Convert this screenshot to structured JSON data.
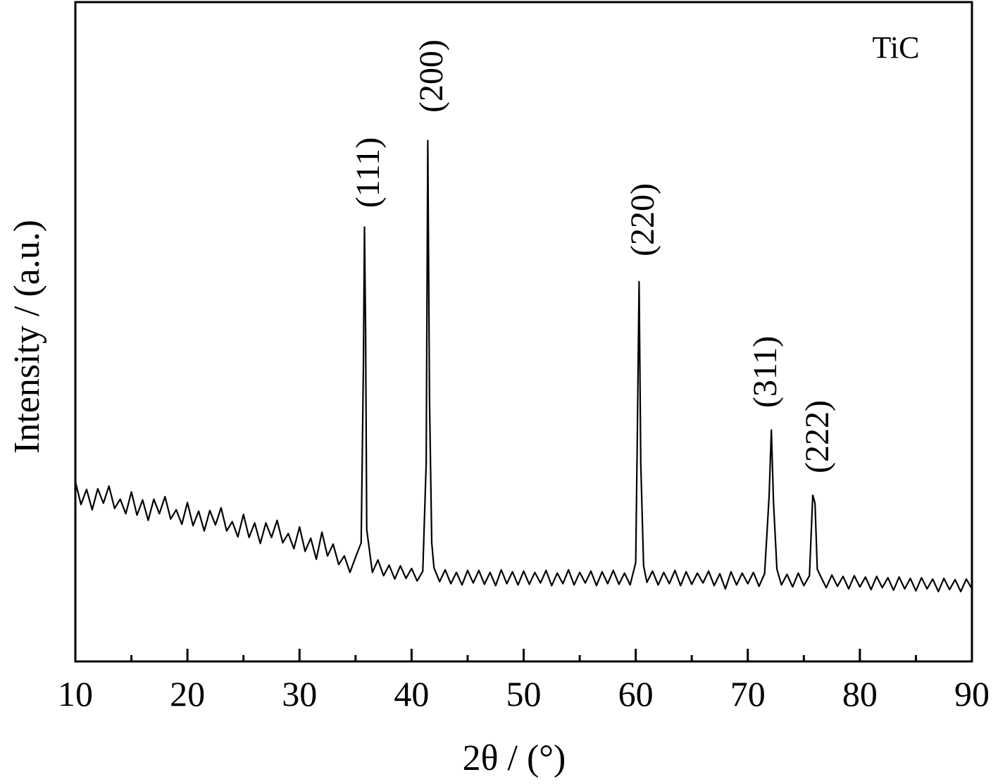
{
  "chart_data": {
    "type": "line",
    "xlabel": "2θ / (°)",
    "ylabel": "Intensity / (a.u.)",
    "annotations": [
      "TiC",
      "(111)",
      "(200)",
      "(220)",
      "(311)",
      "(222)"
    ],
    "color": "#000000",
    "xlim": [
      10,
      90
    ],
    "xticks": [
      10,
      20,
      30,
      40,
      50,
      60,
      70,
      80,
      90
    ],
    "xminorticks": [
      15,
      25,
      35,
      45,
      55,
      65,
      75,
      85
    ],
    "ylim": [
      0,
      100
    ],
    "x": [
      10,
      10.5,
      11,
      11.5,
      12,
      12.5,
      13,
      13.5,
      14,
      14.5,
      15,
      15.5,
      16,
      16.5,
      17,
      17.5,
      18,
      18.5,
      19,
      19.5,
      20,
      20.5,
      21,
      21.5,
      22,
      22.5,
      23,
      23.5,
      24,
      24.5,
      25,
      25.5,
      26,
      26.5,
      27,
      27.5,
      28,
      28.5,
      29,
      29.5,
      30,
      30.5,
      31,
      31.5,
      32,
      32.5,
      33,
      33.5,
      34,
      34.5,
      35,
      35.5,
      35.7,
      35.8,
      35.9,
      36,
      36.5,
      37,
      37.5,
      38,
      38.5,
      39,
      39.5,
      40,
      40.5,
      41,
      41.3,
      41.45,
      41.6,
      41.8,
      42,
      42.5,
      43,
      43.5,
      44,
      44.5,
      45,
      45.5,
      46,
      46.5,
      47,
      47.5,
      48,
      48.5,
      49,
      49.5,
      50,
      50.5,
      51,
      51.5,
      52,
      52.5,
      53,
      53.5,
      54,
      54.5,
      55,
      55.5,
      56,
      56.5,
      57,
      57.5,
      58,
      58.5,
      59,
      59.5,
      60,
      60.15,
      60.3,
      60.45,
      60.7,
      61,
      61.5,
      62,
      62.5,
      63,
      63.5,
      64,
      64.5,
      65,
      65.5,
      66,
      66.5,
      67,
      67.5,
      68,
      68.5,
      69,
      69.5,
      70,
      70.5,
      71,
      71.5,
      71.9,
      72.1,
      72.3,
      72.6,
      73,
      73.5,
      74,
      74.5,
      75,
      75.5,
      75.8,
      76,
      76.2,
      76.5,
      77,
      77.5,
      78,
      78.5,
      79,
      79.5,
      80,
      80.5,
      81,
      81.5,
      82,
      82.5,
      83,
      83.5,
      84,
      84.5,
      85,
      85.5,
      86,
      86.5,
      87,
      87.5,
      88,
      88.5,
      89,
      89.5,
      90
    ],
    "values": [
      27.3,
      23.8,
      26.1,
      23.0,
      26.2,
      24.0,
      26.6,
      23.2,
      24.6,
      22.4,
      25.7,
      22.2,
      24.5,
      21.4,
      24.6,
      22.4,
      25.0,
      21.6,
      23.0,
      20.8,
      24.1,
      20.6,
      22.8,
      19.8,
      22.9,
      20.7,
      23.3,
      19.8,
      21.2,
      18.9,
      22.3,
      18.8,
      21.0,
      17.9,
      21.0,
      18.8,
      21.4,
      18.0,
      19.4,
      17.1,
      20.4,
      16.7,
      18.7,
      15.5,
      19.6,
      16.0,
      17.8,
      14.7,
      16.0,
      13.5,
      15.8,
      18.0,
      45,
      65.9,
      50,
      20,
      13.5,
      15.4,
      13.0,
      14.6,
      12.5,
      14.5,
      12.6,
      14.1,
      12.2,
      13.7,
      30,
      79.0,
      40,
      18,
      14.2,
      12.1,
      13.9,
      11.8,
      13.5,
      11.6,
      13.8,
      11.9,
      13.8,
      11.7,
      13.5,
      11.5,
      13.9,
      11.8,
      13.6,
      11.6,
      13.7,
      11.7,
      13.5,
      11.9,
      13.8,
      11.5,
      13.4,
      11.8,
      13.9,
      11.6,
      13.5,
      11.9,
      13.7,
      11.5,
      13.6,
      11.8,
      13.8,
      11.7,
      13.4,
      11.6,
      15.0,
      35,
      57.6,
      30,
      14.5,
      12.0,
      13.7,
      11.6,
      13.5,
      11.8,
      13.8,
      11.5,
      13.6,
      11.7,
      13.4,
      11.9,
      13.7,
      11.5,
      13.3,
      11.0,
      13.6,
      11.6,
      13.4,
      11.8,
      13.5,
      11.4,
      13.3,
      25,
      35.1,
      24,
      14,
      11.6,
      13.2,
      11.3,
      13.4,
      11.5,
      13.0,
      25.2,
      24.0,
      14,
      12.9,
      11.2,
      13.1,
      11.4,
      12.9,
      11.0,
      13.0,
      11.3,
      12.8,
      10.9,
      12.9,
      11.2,
      12.7,
      10.8,
      12.8,
      11.0,
      12.6,
      10.7,
      12.7,
      11.0,
      12.5,
      10.6,
      12.6,
      10.9,
      12.4,
      10.6,
      12.5,
      11.0
    ]
  }
}
